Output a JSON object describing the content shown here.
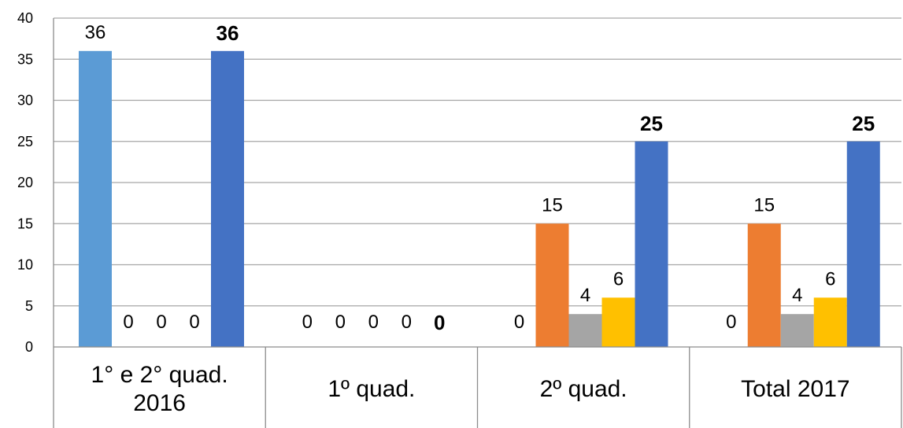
{
  "chart_data": {
    "type": "bar",
    "categories": [
      [
        "1° e 2° quad.",
        "2016"
      ],
      [
        "1º quad."
      ],
      [
        "2º quad."
      ],
      [
        "Total 2017"
      ]
    ],
    "series": [
      {
        "color": "#5B9BD5",
        "values": [
          36,
          0,
          0,
          0
        ]
      },
      {
        "color": "#ED7D31",
        "values": [
          0,
          0,
          15,
          15
        ]
      },
      {
        "color": "#A5A5A5",
        "values": [
          0,
          0,
          4,
          4
        ]
      },
      {
        "color": "#FFC000",
        "values": [
          0,
          0,
          6,
          6
        ]
      },
      {
        "color": "#4472C4",
        "values": [
          36,
          0,
          25,
          25
        ],
        "bold_labels": true
      }
    ],
    "ylim": [
      0,
      40
    ],
    "yticks": [
      0,
      5,
      10,
      15,
      20,
      25,
      30,
      35,
      40
    ],
    "title": "",
    "xlabel": "",
    "ylabel": "",
    "grid": true,
    "legend": "none"
  }
}
